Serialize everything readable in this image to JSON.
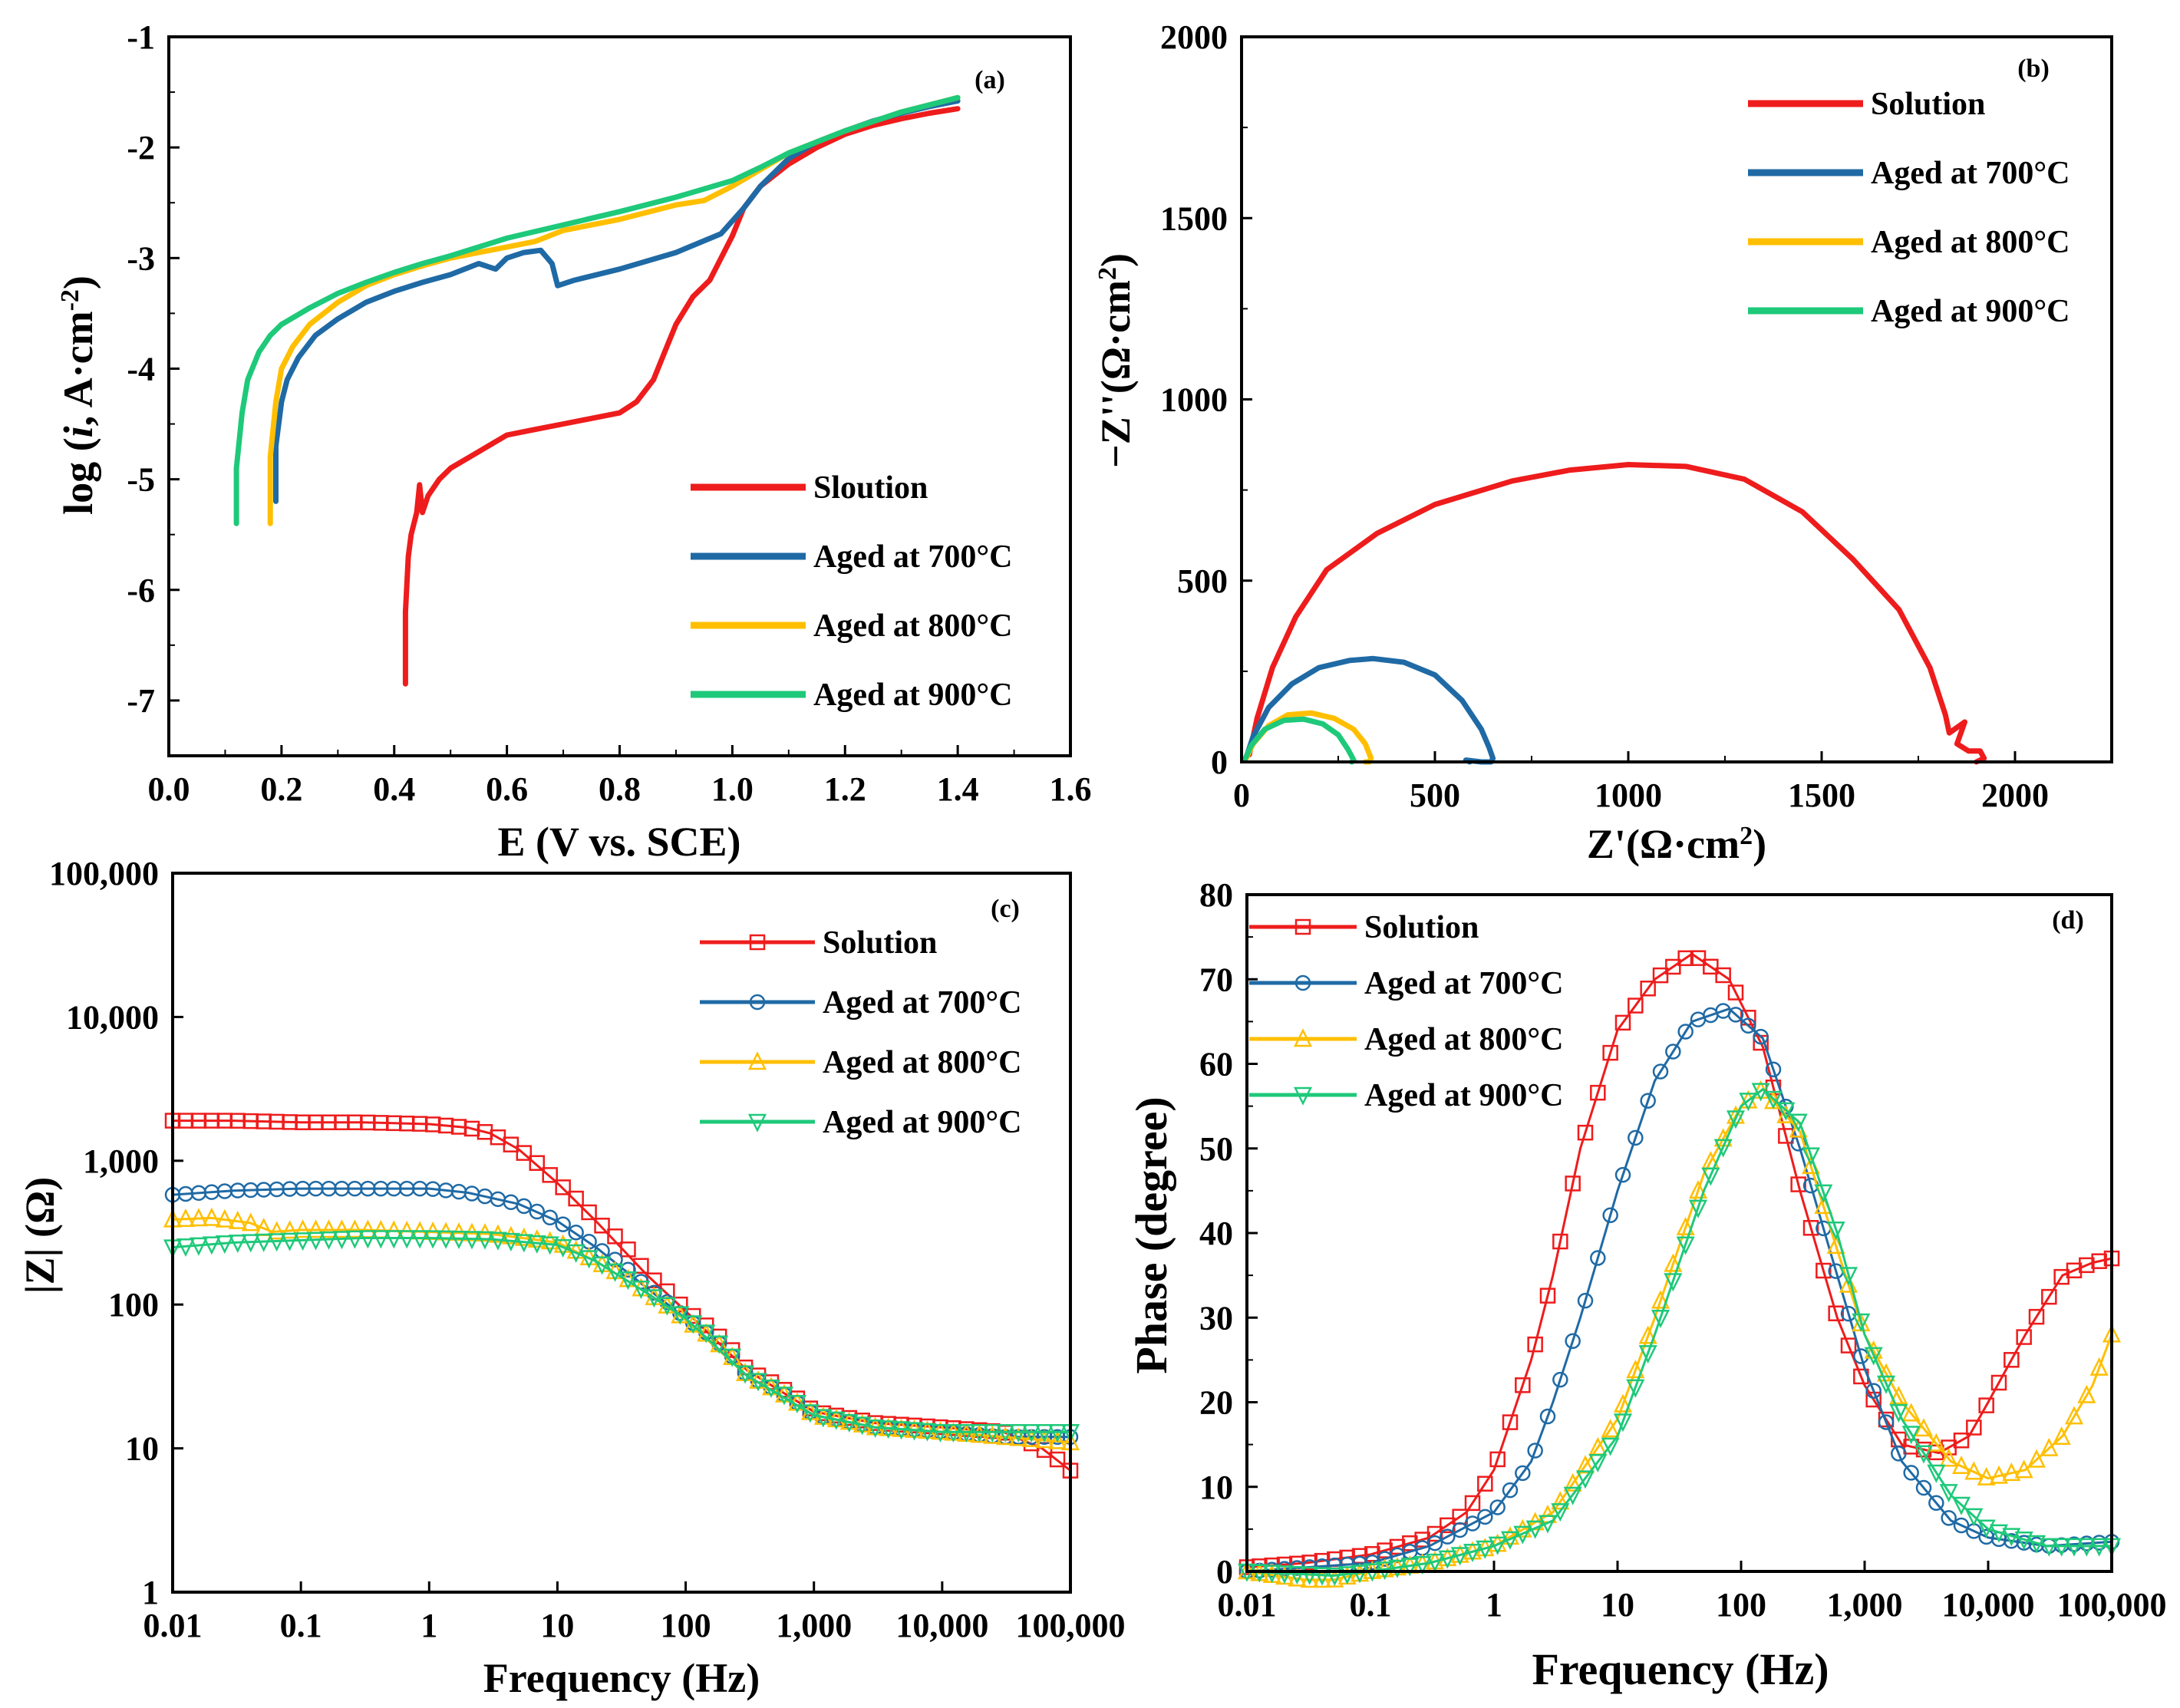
{
  "colors": {
    "red": "#ee1c1c",
    "blue": "#1f6aa5",
    "yellow": "#ffbf00",
    "green": "#1ec97a"
  },
  "chart_data": [
    {
      "panel": "(a)",
      "type": "line",
      "xlabel": "E (V vs. SCE)",
      "ylabel_parts": [
        "log (",
        "i",
        ", A·cm",
        "-2",
        ")"
      ],
      "xlim": [
        0.0,
        1.6
      ],
      "ylim": [
        -7.5,
        -1
      ],
      "xticks": [
        0.0,
        0.2,
        0.4,
        0.6,
        0.8,
        1.0,
        1.2,
        1.4,
        1.6
      ],
      "xtick_labels": [
        "0.0",
        "0.2",
        "0.4",
        "0.6",
        "0.8",
        "1.0",
        "1.2",
        "1.4",
        "1.6"
      ],
      "yticks": [
        -1,
        -2,
        -3,
        -4,
        -5,
        -6,
        -7
      ],
      "ytick_labels": [
        "-1",
        "-2",
        "-3",
        "-4",
        "-5",
        "-6",
        "-7"
      ],
      "series": [
        {
          "name": "Sloution",
          "color": "#ee1c1c",
          "x": [
            0.42,
            0.42,
            0.425,
            0.43,
            0.44,
            0.445,
            0.45,
            0.46,
            0.48,
            0.5,
            0.55,
            0.6,
            0.65,
            0.7,
            0.75,
            0.8,
            0.83,
            0.86,
            0.88,
            0.9,
            0.93,
            0.96,
            0.98,
            1.0,
            1.02,
            1.05,
            1.1,
            1.15,
            1.2,
            1.25,
            1.3,
            1.35,
            1.4
          ],
          "y": [
            -6.85,
            -6.2,
            -5.7,
            -5.5,
            -5.3,
            -5.05,
            -5.3,
            -5.15,
            -5.0,
            -4.9,
            -4.75,
            -4.6,
            -4.55,
            -4.5,
            -4.45,
            -4.4,
            -4.3,
            -4.1,
            -3.85,
            -3.6,
            -3.35,
            -3.2,
            -3.0,
            -2.8,
            -2.55,
            -2.35,
            -2.15,
            -2.0,
            -1.88,
            -1.8,
            -1.74,
            -1.69,
            -1.65
          ]
        },
        {
          "name": "Aged at 700°C",
          "color": "#1f6aa5",
          "x": [
            0.19,
            0.19,
            0.2,
            0.21,
            0.23,
            0.26,
            0.3,
            0.35,
            0.4,
            0.45,
            0.5,
            0.55,
            0.58,
            0.6,
            0.63,
            0.66,
            0.68,
            0.69,
            0.72,
            0.8,
            0.9,
            0.98,
            1.02,
            1.05,
            1.1,
            1.15,
            1.2,
            1.25,
            1.3,
            1.35,
            1.4
          ],
          "y": [
            -5.2,
            -4.7,
            -4.3,
            -4.1,
            -3.9,
            -3.7,
            -3.55,
            -3.4,
            -3.3,
            -3.22,
            -3.15,
            -3.05,
            -3.1,
            -3.0,
            -2.95,
            -2.93,
            -3.05,
            -3.25,
            -3.2,
            -3.1,
            -2.95,
            -2.78,
            -2.55,
            -2.35,
            -2.1,
            -1.95,
            -1.85,
            -1.76,
            -1.69,
            -1.63,
            -1.58
          ]
        },
        {
          "name": "Aged at 800°C",
          "color": "#ffbf00",
          "x": [
            0.18,
            0.18,
            0.19,
            0.2,
            0.22,
            0.25,
            0.3,
            0.35,
            0.4,
            0.45,
            0.5,
            0.55,
            0.6,
            0.65,
            0.7,
            0.8,
            0.9,
            0.95,
            1.0,
            1.05,
            1.1,
            1.2,
            1.3,
            1.4
          ],
          "y": [
            -5.4,
            -4.8,
            -4.3,
            -4.0,
            -3.8,
            -3.6,
            -3.4,
            -3.25,
            -3.15,
            -3.07,
            -3.0,
            -2.95,
            -2.9,
            -2.85,
            -2.75,
            -2.65,
            -2.52,
            -2.48,
            -2.35,
            -2.2,
            -2.05,
            -1.85,
            -1.68,
            -1.55
          ]
        },
        {
          "name": "Aged at 900°C",
          "color": "#1ec97a",
          "x": [
            0.12,
            0.12,
            0.13,
            0.14,
            0.16,
            0.18,
            0.2,
            0.25,
            0.3,
            0.35,
            0.4,
            0.45,
            0.5,
            0.55,
            0.6,
            0.7,
            0.8,
            0.9,
            1.0,
            1.05,
            1.1,
            1.2,
            1.3,
            1.4
          ],
          "y": [
            -5.4,
            -4.9,
            -4.4,
            -4.1,
            -3.85,
            -3.7,
            -3.6,
            -3.45,
            -3.32,
            -3.22,
            -3.13,
            -3.05,
            -2.98,
            -2.9,
            -2.82,
            -2.7,
            -2.58,
            -2.45,
            -2.3,
            -2.18,
            -2.05,
            -1.85,
            -1.68,
            -1.55
          ]
        }
      ]
    },
    {
      "panel": "(b)",
      "type": "line",
      "xlabel_parts": [
        "Z",
        "'",
        "(Ω·cm",
        "2",
        ")"
      ],
      "ylabel_parts": [
        "−Z",
        "''",
        "(Ω·cm",
        "2",
        ")"
      ],
      "xlim": [
        0,
        2250
      ],
      "ylim": [
        0,
        2000
      ],
      "xticks": [
        0,
        500,
        1000,
        1500,
        2000
      ],
      "xtick_labels": [
        "0",
        "500",
        "1000",
        "1500",
        "2000"
      ],
      "yticks": [
        0,
        500,
        1000,
        1500,
        2000
      ],
      "ytick_labels": [
        "0",
        "500",
        "1000",
        "1500",
        "2000"
      ],
      "series": [
        {
          "name": "Solution",
          "color": "#ee1c1c",
          "x": [
            20,
            40,
            80,
            140,
            220,
            350,
            500,
            700,
            850,
            1000,
            1150,
            1300,
            1450,
            1580,
            1700,
            1780,
            1820,
            1830,
            1870,
            1850,
            1880,
            1910,
            1920,
            1900
          ],
          "y": [
            20,
            120,
            260,
            400,
            530,
            630,
            710,
            775,
            805,
            820,
            815,
            780,
            690,
            560,
            420,
            260,
            130,
            80,
            110,
            50,
            30,
            30,
            10,
            0
          ]
        },
        {
          "name": "Aged at 700°C",
          "color": "#1f6aa5",
          "x": [
            10,
            30,
            70,
            130,
            200,
            280,
            340,
            420,
            500,
            570,
            620,
            640,
            650,
            645,
            620,
            580,
            590
          ],
          "y": [
            5,
            70,
            150,
            215,
            260,
            280,
            285,
            275,
            240,
            170,
            90,
            40,
            10,
            0,
            0,
            5,
            0
          ]
        },
        {
          "name": "Aged at 800°C",
          "color": "#ffbf00",
          "x": [
            10,
            30,
            70,
            120,
            180,
            240,
            290,
            320,
            335,
            330,
            320
          ],
          "y": [
            5,
            50,
            100,
            130,
            135,
            120,
            90,
            50,
            10,
            0,
            0
          ]
        },
        {
          "name": "Aged at 900°C",
          "color": "#1ec97a",
          "x": [
            8,
            25,
            60,
            110,
            160,
            210,
            250,
            275,
            290,
            285
          ],
          "y": [
            5,
            45,
            90,
            115,
            118,
            105,
            75,
            35,
            5,
            0
          ]
        }
      ]
    },
    {
      "panel": "(c)",
      "type": "scatter",
      "xlabel": "Frequency (Hz)",
      "ylabel": "|Z| (Ω)",
      "xscale": "log",
      "yscale": "log",
      "xlim": [
        0.01,
        100000
      ],
      "ylim": [
        1,
        100000
      ],
      "xticks": [
        0.01,
        0.1,
        1,
        10,
        100,
        1000,
        10000,
        100000
      ],
      "xtick_labels": [
        "0.01",
        "0.1",
        "1",
        "10",
        "100",
        "1,000",
        "10,000",
        "100,000"
      ],
      "yticks": [
        1,
        10,
        100,
        1000,
        10000,
        100000
      ],
      "ytick_labels": [
        "1",
        "10",
        "100",
        "1,000",
        "10,000",
        "100,000"
      ],
      "series": [
        {
          "name": "Solution",
          "color": "#ee1c1c",
          "marker": "square",
          "x": [
            0.01,
            0.03,
            0.1,
            0.3,
            1,
            2,
            3,
            5,
            10,
            20,
            50,
            100,
            300,
            1000,
            3000,
            10000,
            30000,
            60000,
            100000
          ],
          "y": [
            1900,
            1900,
            1850,
            1850,
            1800,
            1700,
            1550,
            1200,
            700,
            380,
            160,
            90,
            35,
            18,
            15,
            14,
            13,
            10,
            7
          ]
        },
        {
          "name": "Aged at 700°C",
          "color": "#1f6aa5",
          "marker": "circle",
          "x": [
            0.01,
            0.03,
            0.1,
            0.3,
            1,
            2,
            5,
            10,
            20,
            50,
            100,
            300,
            1000,
            3000,
            10000,
            30000,
            100000
          ],
          "y": [
            580,
            620,
            640,
            640,
            640,
            600,
            500,
            380,
            250,
            130,
            80,
            32,
            17,
            14,
            13,
            12,
            12
          ]
        },
        {
          "name": "Aged at 800°C",
          "color": "#ffbf00",
          "marker": "triangle-up",
          "x": [
            0.01,
            0.02,
            0.04,
            0.06,
            0.1,
            0.3,
            1,
            3,
            10,
            20,
            50,
            100,
            300,
            1000,
            3000,
            10000,
            30000,
            100000
          ],
          "y": [
            390,
            400,
            370,
            320,
            330,
            330,
            320,
            310,
            270,
            200,
            120,
            78,
            32,
            17,
            14,
            13,
            12,
            11
          ]
        },
        {
          "name": "Aged at 900°C",
          "color": "#1ec97a",
          "marker": "triangle-down",
          "x": [
            0.01,
            0.03,
            0.1,
            0.3,
            1,
            3,
            10,
            20,
            50,
            100,
            300,
            1000,
            3000,
            10000,
            30000,
            100000
          ],
          "y": [
            250,
            270,
            280,
            290,
            290,
            285,
            260,
            200,
            120,
            80,
            32,
            17,
            14,
            13,
            13,
            13
          ]
        }
      ]
    },
    {
      "panel": "(d)",
      "type": "scatter",
      "xlabel": "Frequency (Hz)",
      "ylabel": "Phase (degree)",
      "xscale": "log",
      "xlim": [
        0.01,
        100000
      ],
      "ylim": [
        0,
        80
      ],
      "xticks": [
        0.01,
        0.1,
        1,
        10,
        100,
        1000,
        10000,
        100000
      ],
      "xtick_labels": [
        "0.01",
        "0.1",
        "1",
        "10",
        "100",
        "1,000",
        "10,000",
        "100,000"
      ],
      "yticks": [
        0,
        10,
        20,
        30,
        40,
        50,
        60,
        70,
        80
      ],
      "ytick_labels": [
        "0",
        "10",
        "20",
        "30",
        "40",
        "50",
        "60",
        "70",
        "80"
      ],
      "series": [
        {
          "name": "Solution",
          "color": "#ee1c1c",
          "marker": "square",
          "x": [
            0.01,
            0.03,
            0.1,
            0.3,
            0.6,
            1,
            2,
            3,
            5,
            10,
            20,
            40,
            80,
            150,
            300,
            600,
            1000,
            2000,
            4000,
            7000,
            10000,
            20000,
            40000,
            70000,
            100000
          ],
          "y": [
            0.5,
            1,
            2,
            4,
            7,
            12,
            25,
            35,
            50,
            64,
            70,
            73,
            70,
            62,
            45,
            30,
            22,
            15,
            14,
            16,
            20,
            28,
            35,
            36.5,
            37
          ]
        },
        {
          "name": "Aged at 700°C",
          "color": "#1f6aa5",
          "marker": "circle",
          "x": [
            0.01,
            0.1,
            0.3,
            1,
            2,
            3,
            5,
            10,
            20,
            40,
            80,
            150,
            300,
            600,
            1000,
            2000,
            5000,
            10000,
            30000,
            100000
          ],
          "y": [
            0,
            1,
            3,
            7,
            13,
            20,
            30,
            45,
            58,
            65,
            66.5,
            63,
            50,
            35,
            24,
            13,
            6,
            4,
            3,
            3.5
          ]
        },
        {
          "name": "Aged at 800°C",
          "color": "#ffbf00",
          "marker": "triangle-up",
          "x": [
            0.01,
            0.03,
            0.05,
            0.1,
            0.3,
            1,
            3,
            10,
            20,
            50,
            100,
            150,
            300,
            600,
            1000,
            2000,
            5000,
            10000,
            20000,
            40000,
            70000,
            100000
          ],
          "y": [
            0,
            -1,
            -1,
            0,
            1,
            3,
            7,
            18,
            30,
            47,
            55,
            57,
            52,
            38,
            28,
            20,
            13,
            11,
            12,
            16,
            22,
            28
          ]
        },
        {
          "name": "Aged at 900°C",
          "color": "#1ec97a",
          "marker": "triangle-down",
          "x": [
            0.01,
            0.05,
            0.1,
            0.3,
            1,
            3,
            10,
            20,
            50,
            100,
            150,
            300,
            600,
            1000,
            2000,
            5000,
            10000,
            30000,
            100000
          ],
          "y": [
            0,
            -0.5,
            0,
            1,
            3,
            6,
            16,
            28,
            45,
            55,
            57,
            53,
            40,
            28,
            18,
            9,
            5,
            3,
            3
          ]
        }
      ]
    }
  ]
}
